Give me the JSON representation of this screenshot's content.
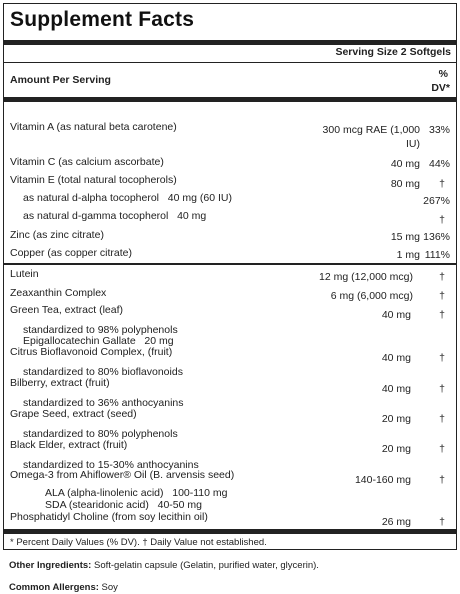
{
  "title": "Supplement Facts",
  "serving_size": "Serving Size 2 Softgels",
  "amount_header": "Amount Per Serving",
  "dv_header_line1": "%",
  "dv_header_line2": "DV*",
  "nutrients": [
    {
      "name": "Vitamin A (as natural beta carotene)",
      "amount_line1": "300 mcg RAE (1,000",
      "amount_line2": "IU)",
      "dv": "33%"
    },
    {
      "name": "Vitamin C (as calcium ascorbate)",
      "amount": "40 mg",
      "dv": "44%"
    },
    {
      "name": "Vitamin E (total natural tocopherols)",
      "amount": "80 mg",
      "dv": "†"
    },
    {
      "name": "as natural d-alpha tocopherol   40 mg (60 IU)",
      "dv": "267%"
    },
    {
      "name": "as natural d-gamma tocopherol   40 mg",
      "dv": "†"
    },
    {
      "name": "Zinc (as zinc citrate)",
      "amount": "15 mg",
      "dv": "136%"
    },
    {
      "name": "Copper (as copper citrate)",
      "amount": "1 mg",
      "dv": "111%"
    }
  ],
  "others": [
    {
      "name": "Lutein",
      "amount": "12 mg (12,000 mcg)",
      "dv": "†"
    },
    {
      "name": "Zeaxanthin Complex",
      "amount": "6 mg (6,000 mcg)",
      "dv": "†"
    },
    {
      "name": "Green Tea, extract (leaf)",
      "amount": "40 mg",
      "dv": "†"
    },
    {
      "sub1": "standardized to 98% polyphenols",
      "sub2": "Epigallocatechin Gallate   20 mg"
    },
    {
      "name": "Citrus Bioflavonoid Complex, (fruit)",
      "amount": "40 mg",
      "dv": "†"
    },
    {
      "sub1": "standardized to 80% bioflavonoids"
    },
    {
      "name": "Bilberry, extract (fruit)",
      "amount": "40 mg",
      "dv": "†"
    },
    {
      "sub1": "standardized to 36% anthocyanins"
    },
    {
      "name": "Grape Seed, extract (seed)",
      "amount": "20 mg",
      "dv": "†"
    },
    {
      "sub1": "standardized to 80% polyphenols"
    },
    {
      "name": "Black Elder, extract (fruit)",
      "amount": "20 mg",
      "dv": "†"
    },
    {
      "sub1": "standardized to 15-30% anthocyanins"
    },
    {
      "name": "Omega-3 from Ahiflower® Oil (B. arvensis seed)",
      "amount": "140-160 mg",
      "dv": "†"
    },
    {
      "sub1": "ALA (alpha-linolenic acid)   100-110 mg",
      "sub2": "SDA (stearidonic acid)   40-50 mg"
    },
    {
      "name": "Phosphatidyl Choline (from soy lecithin oil)",
      "amount": "26 mg",
      "dv": "†"
    }
  ],
  "footnote": "* Percent Daily Values (% DV). † Daily Value not established.",
  "other_ingredients_label": "Other Ingredients:",
  "other_ingredients": " Soft-gelatin capsule (Gelatin, purified water, glycerin).",
  "allergens_label": "Common Allergens:",
  "allergens": " Soy"
}
